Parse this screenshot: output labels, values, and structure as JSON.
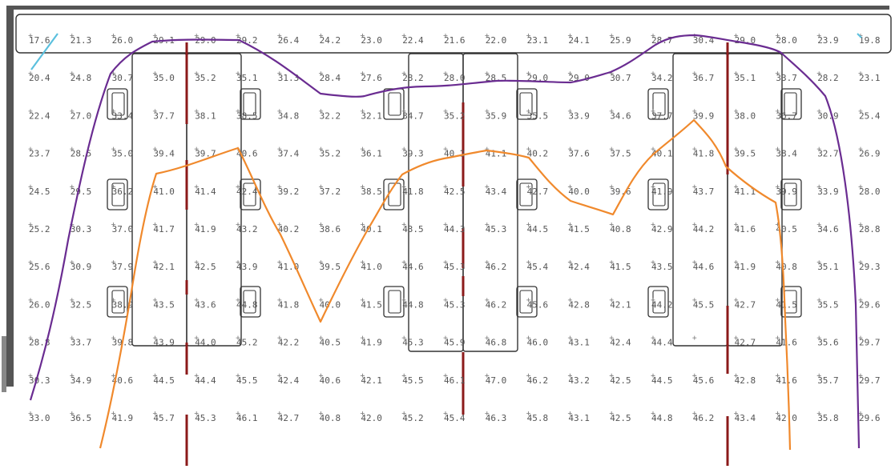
{
  "colors": {
    "wall": "#555555",
    "outline": "#333333",
    "purple_line": "#6a2c91",
    "orange_line": "#f0892c",
    "cyan_line": "#5bc0de",
    "partition": "#8b1a1a",
    "value_text": "#555555"
  },
  "grid": {
    "rows": [
      [
        "17.6",
        "21.3",
        "26.0",
        "29.1",
        "29.0",
        "29.2",
        "26.4",
        "24.2",
        "23.0",
        "22.4",
        "21.6",
        "22.0",
        "23.1",
        "24.1",
        "25.9",
        "28.7",
        "30.4",
        "29.0",
        "28.0",
        "23.9",
        "19.8"
      ],
      [
        "20.4",
        "24.8",
        "30.7",
        "35.0",
        "35.2",
        "35.1",
        "31.3",
        "28.4",
        "27.6",
        "28.2",
        "28.0",
        "28.5",
        "29.0",
        "29.0",
        "30.7",
        "34.2",
        "36.7",
        "35.1",
        "33.7",
        "28.2",
        "23.1"
      ],
      [
        "22.4",
        "27.0",
        "33.4",
        "37.7",
        "38.1",
        "38.5",
        "34.8",
        "32.2",
        "32.1",
        "34.7",
        "35.2",
        "35.9",
        "35.5",
        "33.9",
        "34.6",
        "37.7",
        "39.9",
        "38.0",
        "36.7",
        "30.9",
        "25.4"
      ],
      [
        "23.7",
        "28.5",
        "35.0",
        "39.4",
        "39.7",
        "40.6",
        "37.4",
        "35.2",
        "36.1",
        "39.3",
        "40.2",
        "41.1",
        "40.2",
        "37.6",
        "37.5",
        "40.1",
        "41.8",
        "39.5",
        "38.4",
        "32.7",
        "26.9"
      ],
      [
        "24.5",
        "29.5",
        "36.2",
        "41.0",
        "41.4",
        "42.4",
        "39.2",
        "37.2",
        "38.5",
        "41.8",
        "42.5",
        "43.4",
        "42.7",
        "40.0",
        "39.6",
        "41.9",
        "43.7",
        "41.1",
        "39.9",
        "33.9",
        "28.0"
      ],
      [
        "25.2",
        "30.3",
        "37.0",
        "41.7",
        "41.9",
        "43.2",
        "40.2",
        "38.6",
        "40.1",
        "43.5",
        "44.3",
        "45.3",
        "44.5",
        "41.5",
        "40.8",
        "42.9",
        "44.2",
        "41.6",
        "40.5",
        "34.6",
        "28.8"
      ],
      [
        "25.6",
        "30.9",
        "37.9",
        "42.1",
        "42.5",
        "43.9",
        "41.0",
        "39.5",
        "41.0",
        "44.6",
        "45.3",
        "46.2",
        "45.4",
        "42.4",
        "41.5",
        "43.5",
        "44.6",
        "41.9",
        "40.8",
        "35.1",
        "29.3"
      ],
      [
        "26.0",
        "32.5",
        "38.9",
        "43.5",
        "43.6",
        "44.8",
        "41.8",
        "40.0",
        "41.5",
        "44.8",
        "45.3",
        "46.2",
        "45.6",
        "42.8",
        "42.1",
        "44.2",
        "45.5",
        "42.7",
        "41.5",
        "35.5",
        "29.6"
      ],
      [
        "28.8",
        "33.7",
        "39.8",
        "43.9",
        "44.0",
        "45.2",
        "42.2",
        "40.5",
        "41.9",
        "45.3",
        "45.9",
        "46.8",
        "46.0",
        "43.1",
        "42.4",
        "44.4",
        "",
        "42.7",
        "41.6",
        "35.6",
        "29.7"
      ],
      [
        "30.3",
        "34.9",
        "40.6",
        "44.5",
        "44.4",
        "45.5",
        "42.4",
        "40.6",
        "42.1",
        "45.5",
        "46.1",
        "47.0",
        "46.2",
        "43.2",
        "42.5",
        "44.5",
        "45.6",
        "42.8",
        "41.6",
        "35.7",
        "29.7"
      ],
      [
        "33.0",
        "36.5",
        "41.9",
        "45.7",
        "45.3",
        "46.1",
        "42.7",
        "40.8",
        "42.0",
        "45.2",
        "45.4",
        "46.3",
        "45.8",
        "43.1",
        "42.5",
        "44.8",
        "46.2",
        "43.4",
        "42.0",
        "35.8",
        "29.6"
      ]
    ]
  }
}
